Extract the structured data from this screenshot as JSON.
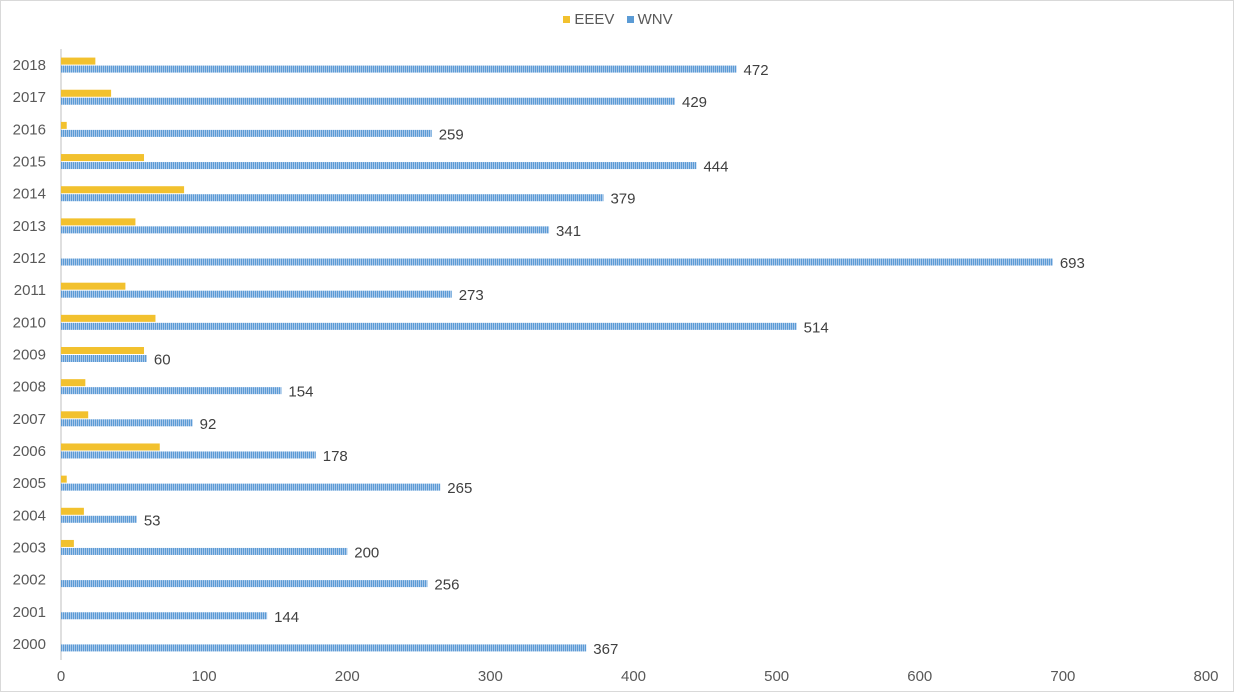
{
  "chart_data": {
    "type": "bar",
    "orientation": "horizontal",
    "categories": [
      "2000",
      "2001",
      "2002",
      "2003",
      "2004",
      "2005",
      "2006",
      "2007",
      "2008",
      "2009",
      "2010",
      "2011",
      "2012",
      "2013",
      "2014",
      "2015",
      "2016",
      "2017",
      "2018"
    ],
    "series": [
      {
        "name": "EEEV",
        "color": "#f2c12e",
        "values": [
          0,
          0,
          0,
          9,
          16,
          4,
          69,
          19,
          17,
          58,
          66,
          45,
          0,
          52,
          86,
          58,
          4,
          35,
          24
        ]
      },
      {
        "name": "WNV",
        "color": "#5b9bd5",
        "values": [
          367,
          144,
          256,
          200,
          53,
          265,
          178,
          92,
          154,
          60,
          514,
          273,
          693,
          341,
          379,
          444,
          259,
          429,
          472
        ]
      }
    ],
    "data_labels_series": "WNV",
    "xlim": [
      0,
      800
    ],
    "x_ticks": [
      0,
      100,
      200,
      300,
      400,
      500,
      600,
      700,
      800
    ],
    "title": "",
    "xlabel": "",
    "ylabel": "",
    "legend_position": "top",
    "grid": false
  }
}
